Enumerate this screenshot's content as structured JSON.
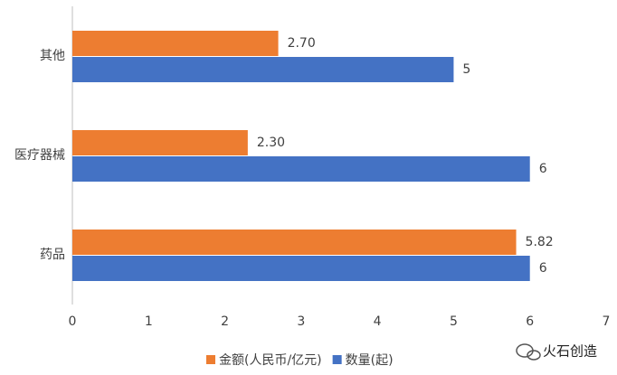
{
  "chart_data": {
    "type": "bar",
    "orientation": "horizontal",
    "categories": [
      "其他",
      "医疗器械",
      "药品"
    ],
    "series": [
      {
        "name": "金额(人民币/亿元)",
        "color": "#ed7d31",
        "values": [
          2.7,
          2.3,
          5.82
        ],
        "value_labels": [
          "2.70",
          "2.30",
          "5.82"
        ]
      },
      {
        "name": "数量(起)",
        "color": "#4472c4",
        "values": [
          5,
          6,
          6
        ]
      }
    ],
    "xlim": [
      0,
      7
    ],
    "xticks": [
      0,
      1,
      2,
      3,
      4,
      5,
      6,
      7
    ],
    "grid": false,
    "legend": "bottom",
    "watermark": "火石创造"
  }
}
